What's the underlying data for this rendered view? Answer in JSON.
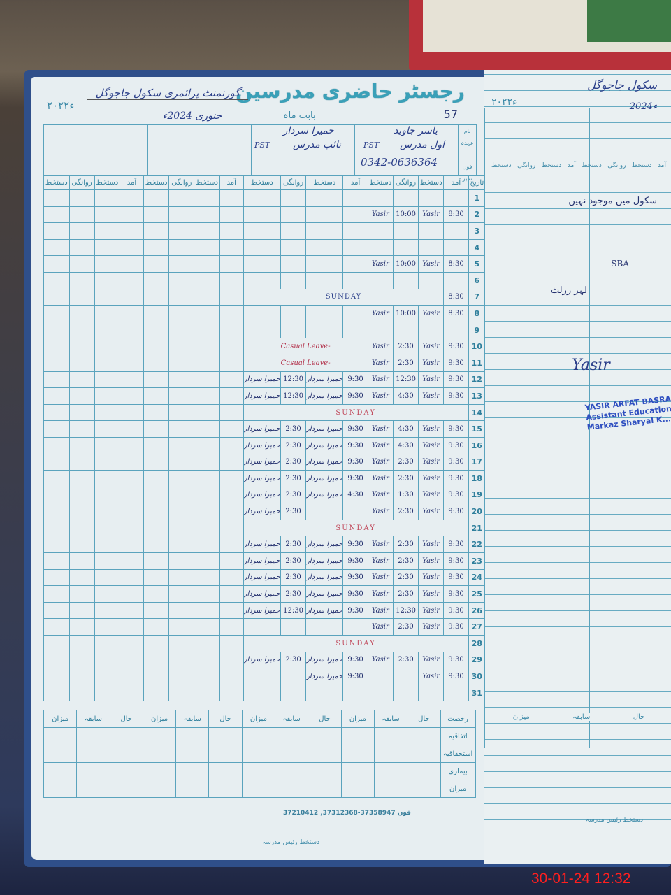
{
  "register": {
    "title": "رجسٹر حاضری مدرسین",
    "page_number": "57",
    "year_printed": "۲۰۲۲ء",
    "school_label": "گورنمنٹ پرائمری سکول جاجوگل",
    "month_label": "بابت ماہ",
    "month_value": "جنوری 2024ء",
    "row_labels": {
      "name": "نام",
      "designation": "عہدہ",
      "phone": "فون نمبر",
      "date": "تاریخ"
    },
    "teachers": [
      {
        "name": "یاسر جاوید",
        "designation": "اول مدرس",
        "grade": "PST",
        "phone": "0342-0636364"
      },
      {
        "name": "حمیرا سردار",
        "designation": "نائب مدرس",
        "grade": "PST",
        "phone": ""
      }
    ],
    "column_headers": [
      "آمد",
      "دستخط",
      "روانگی",
      "دستخط"
    ],
    "signatures": {
      "t1": "Yasir",
      "t2": "حمیرا سردار"
    },
    "notes": {
      "sunday": "SUNDAY",
      "casual_leave": "Casual Leave"
    },
    "rows": [
      {
        "date": "1",
        "t1_in": "",
        "t1_out": "",
        "t2_in": "",
        "t2_out": "",
        "note": ""
      },
      {
        "date": "2",
        "t1_in": "8:30",
        "t1_out": "10:00",
        "t2_in": "",
        "t2_out": "",
        "note": ""
      },
      {
        "date": "3",
        "t1_in": "",
        "t1_out": "",
        "t2_in": "",
        "t2_out": "",
        "note": ""
      },
      {
        "date": "4",
        "t1_in": "",
        "t1_out": "",
        "t2_in": "",
        "t2_out": "",
        "note": ""
      },
      {
        "date": "5",
        "t1_in": "8:30",
        "t1_out": "10:00",
        "t2_in": "",
        "t2_out": "",
        "note": ""
      },
      {
        "date": "6",
        "t1_in": "",
        "t1_out": "",
        "t2_in": "",
        "t2_out": "",
        "note": ""
      },
      {
        "date": "7",
        "t1_in": "8:30",
        "t1_out": "",
        "t2_in": "",
        "t2_out": "",
        "note": "SUNDAY"
      },
      {
        "date": "8",
        "t1_in": "8:30",
        "t1_out": "10:00",
        "t2_in": "",
        "t2_out": "",
        "note": ""
      },
      {
        "date": "9",
        "t1_in": "",
        "t1_out": "",
        "t2_in": "",
        "t2_out": "",
        "note": ""
      },
      {
        "date": "10",
        "t1_in": "9:30",
        "t1_out": "2:30",
        "t2_in": "",
        "t2_out": "",
        "note": "Casual Leave"
      },
      {
        "date": "11",
        "t1_in": "9:30",
        "t1_out": "2:30",
        "t2_in": "",
        "t2_out": "",
        "note": "Casual Leave"
      },
      {
        "date": "12",
        "t1_in": "9:30",
        "t1_out": "12:30",
        "t2_in": "9:30",
        "t2_out": "12:30",
        "note": ""
      },
      {
        "date": "13",
        "t1_in": "9:30",
        "t1_out": "4:30",
        "t2_in": "9:30",
        "t2_out": "12:30",
        "note": ""
      },
      {
        "date": "14",
        "t1_in": "",
        "t1_out": "",
        "t2_in": "",
        "t2_out": "",
        "note": "SUNDAY"
      },
      {
        "date": "15",
        "t1_in": "9:30",
        "t1_out": "4:30",
        "t2_in": "9:30",
        "t2_out": "2:30",
        "note": ""
      },
      {
        "date": "16",
        "t1_in": "9:30",
        "t1_out": "4:30",
        "t2_in": "9:30",
        "t2_out": "2:30",
        "note": ""
      },
      {
        "date": "17",
        "t1_in": "9:30",
        "t1_out": "2:30",
        "t2_in": "9:30",
        "t2_out": "2:30",
        "note": ""
      },
      {
        "date": "18",
        "t1_in": "9:30",
        "t1_out": "2:30",
        "t2_in": "9:30",
        "t2_out": "2:30",
        "note": ""
      },
      {
        "date": "19",
        "t1_in": "9:30",
        "t1_out": "1:30",
        "t2_in": "4:30",
        "t2_out": "2:30",
        "note": ""
      },
      {
        "date": "20",
        "t1_in": "9:30",
        "t1_out": "2:30",
        "t2_in": "",
        "t2_out": "2:30",
        "note": ""
      },
      {
        "date": "21",
        "t1_in": "",
        "t1_out": "",
        "t2_in": "",
        "t2_out": "",
        "note": "SUNDAY"
      },
      {
        "date": "22",
        "t1_in": "9:30",
        "t1_out": "2:30",
        "t2_in": "9:30",
        "t2_out": "2:30",
        "note": ""
      },
      {
        "date": "23",
        "t1_in": "9:30",
        "t1_out": "2:30",
        "t2_in": "9:30",
        "t2_out": "2:30",
        "note": ""
      },
      {
        "date": "24",
        "t1_in": "9:30",
        "t1_out": "2:30",
        "t2_in": "9:30",
        "t2_out": "2:30",
        "note": ""
      },
      {
        "date": "25",
        "t1_in": "9:30",
        "t1_out": "2:30",
        "t2_in": "9:30",
        "t2_out": "2:30",
        "note": ""
      },
      {
        "date": "26",
        "t1_in": "9:30",
        "t1_out": "12:30",
        "t2_in": "9:30",
        "t2_out": "12:30",
        "note": ""
      },
      {
        "date": "27",
        "t1_in": "9:30",
        "t1_out": "2:30",
        "t2_in": "",
        "t2_out": "",
        "note": ""
      },
      {
        "date": "28",
        "t1_in": "",
        "t1_out": "",
        "t2_in": "",
        "t2_out": "",
        "note": "SUNDAY"
      },
      {
        "date": "29",
        "t1_in": "9:30",
        "t1_out": "2:30",
        "t2_in": "9:30",
        "t2_out": "2:30",
        "note": ""
      },
      {
        "date": "30",
        "t1_in": "9:30",
        "t1_out": "",
        "t2_in": "9:30",
        "t2_out": "",
        "note": ""
      },
      {
        "date": "31",
        "t1_in": "",
        "t1_out": "",
        "t2_in": "",
        "t2_out": "",
        "note": ""
      }
    ],
    "summary_headers": [
      "رخصت",
      "حال",
      "سابقہ",
      "میزان"
    ],
    "summary_rows": [
      "اتفاقیہ",
      "استحقاقیہ",
      "بیماری",
      "میزان"
    ],
    "printer_line": "37210412 ,37312368-37358947 فون",
    "headmaster_sign_label": "دستخط رئیس مدرسہ"
  },
  "right_page": {
    "school_label": "سکول جاجوگل",
    "year": "2024ء",
    "year_printed": "۲۰۲۲ء",
    "column_headers": [
      "آمد",
      "دستخط",
      "روانگی",
      "دستخط"
    ],
    "remarks": [
      "سکول میں موجود نہیں",
      "SBA",
      "لہر رزلٹ"
    ],
    "stamp": {
      "line1": "YASIR ARFAT BASRA",
      "line2": "Assistant Education Officer",
      "line3": "Markaz Sharyal K..."
    },
    "summary_headers": [
      "حال",
      "سابقہ",
      "میزان"
    ],
    "headmaster_sign_label": "دستخط رئیس مدرسہ"
  },
  "photo_timestamp": "30-01-24  12:32",
  "colors": {
    "ink": "#23306e",
    "red_ink": "#b2304a",
    "print": "#3d8aa8",
    "stamp": "#2f4fc0",
    "timestamp": "#ff1f1f"
  }
}
